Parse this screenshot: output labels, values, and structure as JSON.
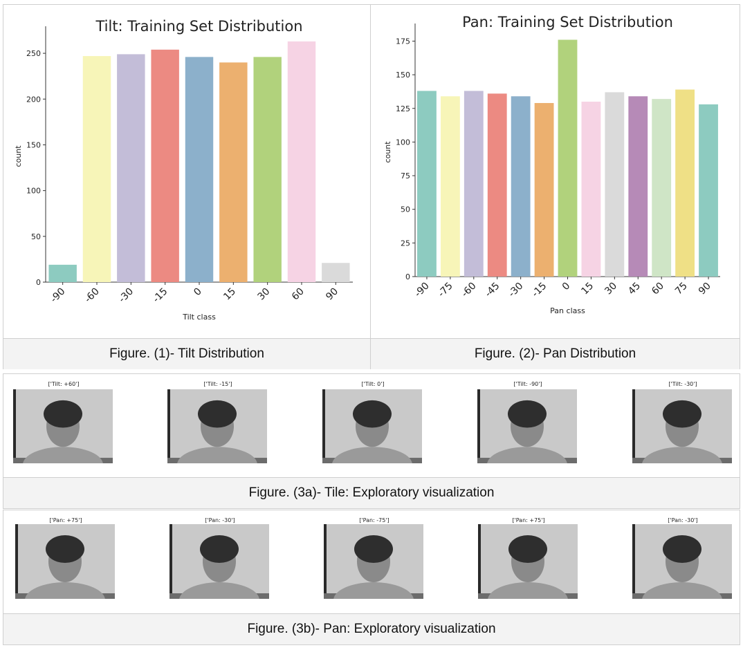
{
  "chart_data": [
    {
      "type": "bar",
      "title": "Tilt: Training Set Distribution",
      "xlabel": "Tilt class",
      "ylabel": "count",
      "categories": [
        "-90",
        "-60",
        "-30",
        "-15",
        "0",
        "15",
        "30",
        "60",
        "90"
      ],
      "values": [
        19,
        247,
        249,
        254,
        246,
        240,
        246,
        263,
        21
      ],
      "colors": [
        "#8dcbc0",
        "#f7f5b8",
        "#c3bdd8",
        "#ec8a82",
        "#8cb0cb",
        "#ecb06f",
        "#b1d27c",
        "#f6d3e4",
        "#dadada"
      ],
      "ylim": [
        0,
        275
      ],
      "yticks": [
        0,
        50,
        100,
        150,
        200,
        250
      ],
      "grid": false
    },
    {
      "type": "bar",
      "title": "Pan: Training Set Distribution",
      "xlabel": "Pan class",
      "ylabel": "count",
      "categories": [
        "-90",
        "-75",
        "-60",
        "-45",
        "-30",
        "-15",
        "0",
        "15",
        "30",
        "45",
        "60",
        "75",
        "90"
      ],
      "values": [
        138,
        134,
        138,
        136,
        134,
        129,
        176,
        130,
        137,
        134,
        132,
        139,
        128
      ],
      "colors": [
        "#8dcbc0",
        "#f7f5b8",
        "#c3bdd8",
        "#ec8a82",
        "#8cb0cb",
        "#ecb06f",
        "#b1d27c",
        "#f6d3e4",
        "#dadada",
        "#b68ab7",
        "#cfe5c6",
        "#efe086",
        "#8dcbc0"
      ],
      "ylim": [
        0,
        185
      ],
      "yticks": [
        0,
        25,
        50,
        75,
        100,
        125,
        150,
        175
      ],
      "grid": false
    }
  ],
  "captions": {
    "fig1": "Figure. (1)- Tilt Distribution",
    "fig2": "Figure. (2)- Pan Distribution",
    "fig3a": "Figure. (3a)- Tile: Exploratory visualization",
    "fig3b": "Figure. (3b)- Pan: Exploratory visualization"
  },
  "tilt_images": [
    {
      "label": "['Tilt: +60']"
    },
    {
      "label": "['Tilt: -15']"
    },
    {
      "label": "['Tilt: 0']"
    },
    {
      "label": "['Tilt: -90']"
    },
    {
      "label": "['Tilt: -30']"
    }
  ],
  "pan_images": [
    {
      "label": "['Pan: +75']"
    },
    {
      "label": "['Pan: -30']"
    },
    {
      "label": "['Pan: -75']"
    },
    {
      "label": "['Pan: +75']"
    },
    {
      "label": "['Pan: -30']"
    }
  ]
}
